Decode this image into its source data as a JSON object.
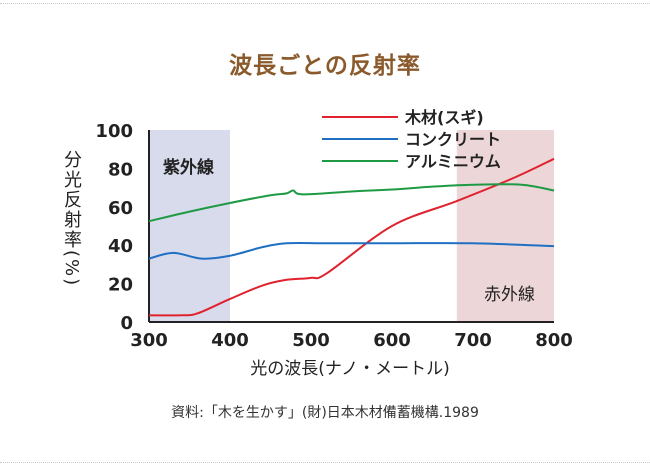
{
  "title": "波長ごとの反射率",
  "source": "資料:「木を生かす」(財)日本木材備蓄機構.1989",
  "chart_data": {
    "type": "line",
    "title": "波長ごとの反射率",
    "xlabel": "光の波長(ナノ・メートル)",
    "ylabel": "分光反射率(%)",
    "xlim": [
      300,
      800
    ],
    "ylim": [
      0,
      100
    ],
    "xticks": [
      300,
      400,
      500,
      600,
      700,
      800
    ],
    "yticks": [
      0,
      20,
      40,
      60,
      80,
      100
    ],
    "legend_position": "top-right",
    "bands": [
      {
        "label": "紫外線",
        "from": 300,
        "to": 400,
        "color": "#d8dbec"
      },
      {
        "label": "赤外線",
        "from": 680,
        "to": 800,
        "color": "#ecd6d7"
      }
    ],
    "series": [
      {
        "name": "木材(スギ)",
        "color": "#e0222e",
        "x": [
          300,
          340,
          360,
          400,
          440,
          470,
          500,
          520,
          600,
          680,
          750,
          800
        ],
        "y": [
          3.5,
          3.5,
          4.5,
          12,
          19,
          22,
          23,
          25.5,
          50,
          63,
          75,
          85
        ]
      },
      {
        "name": "コンクリート",
        "color": "#1f6fc2",
        "x": [
          300,
          330,
          365,
          400,
          440,
          470,
          520,
          600,
          700,
          800
        ],
        "y": [
          33,
          36,
          33,
          34.5,
          39,
          41,
          41,
          41,
          41,
          39.5
        ]
      },
      {
        "name": "アルミニウム",
        "color": "#1f9a44",
        "x": [
          300,
          350,
          400,
          450,
          470,
          478,
          490,
          550,
          600,
          650,
          700,
          760,
          800
        ],
        "y": [
          52.5,
          57.5,
          62,
          66,
          67,
          68.5,
          66.5,
          68,
          69,
          70.5,
          71.5,
          71.5,
          68.5
        ]
      }
    ]
  }
}
